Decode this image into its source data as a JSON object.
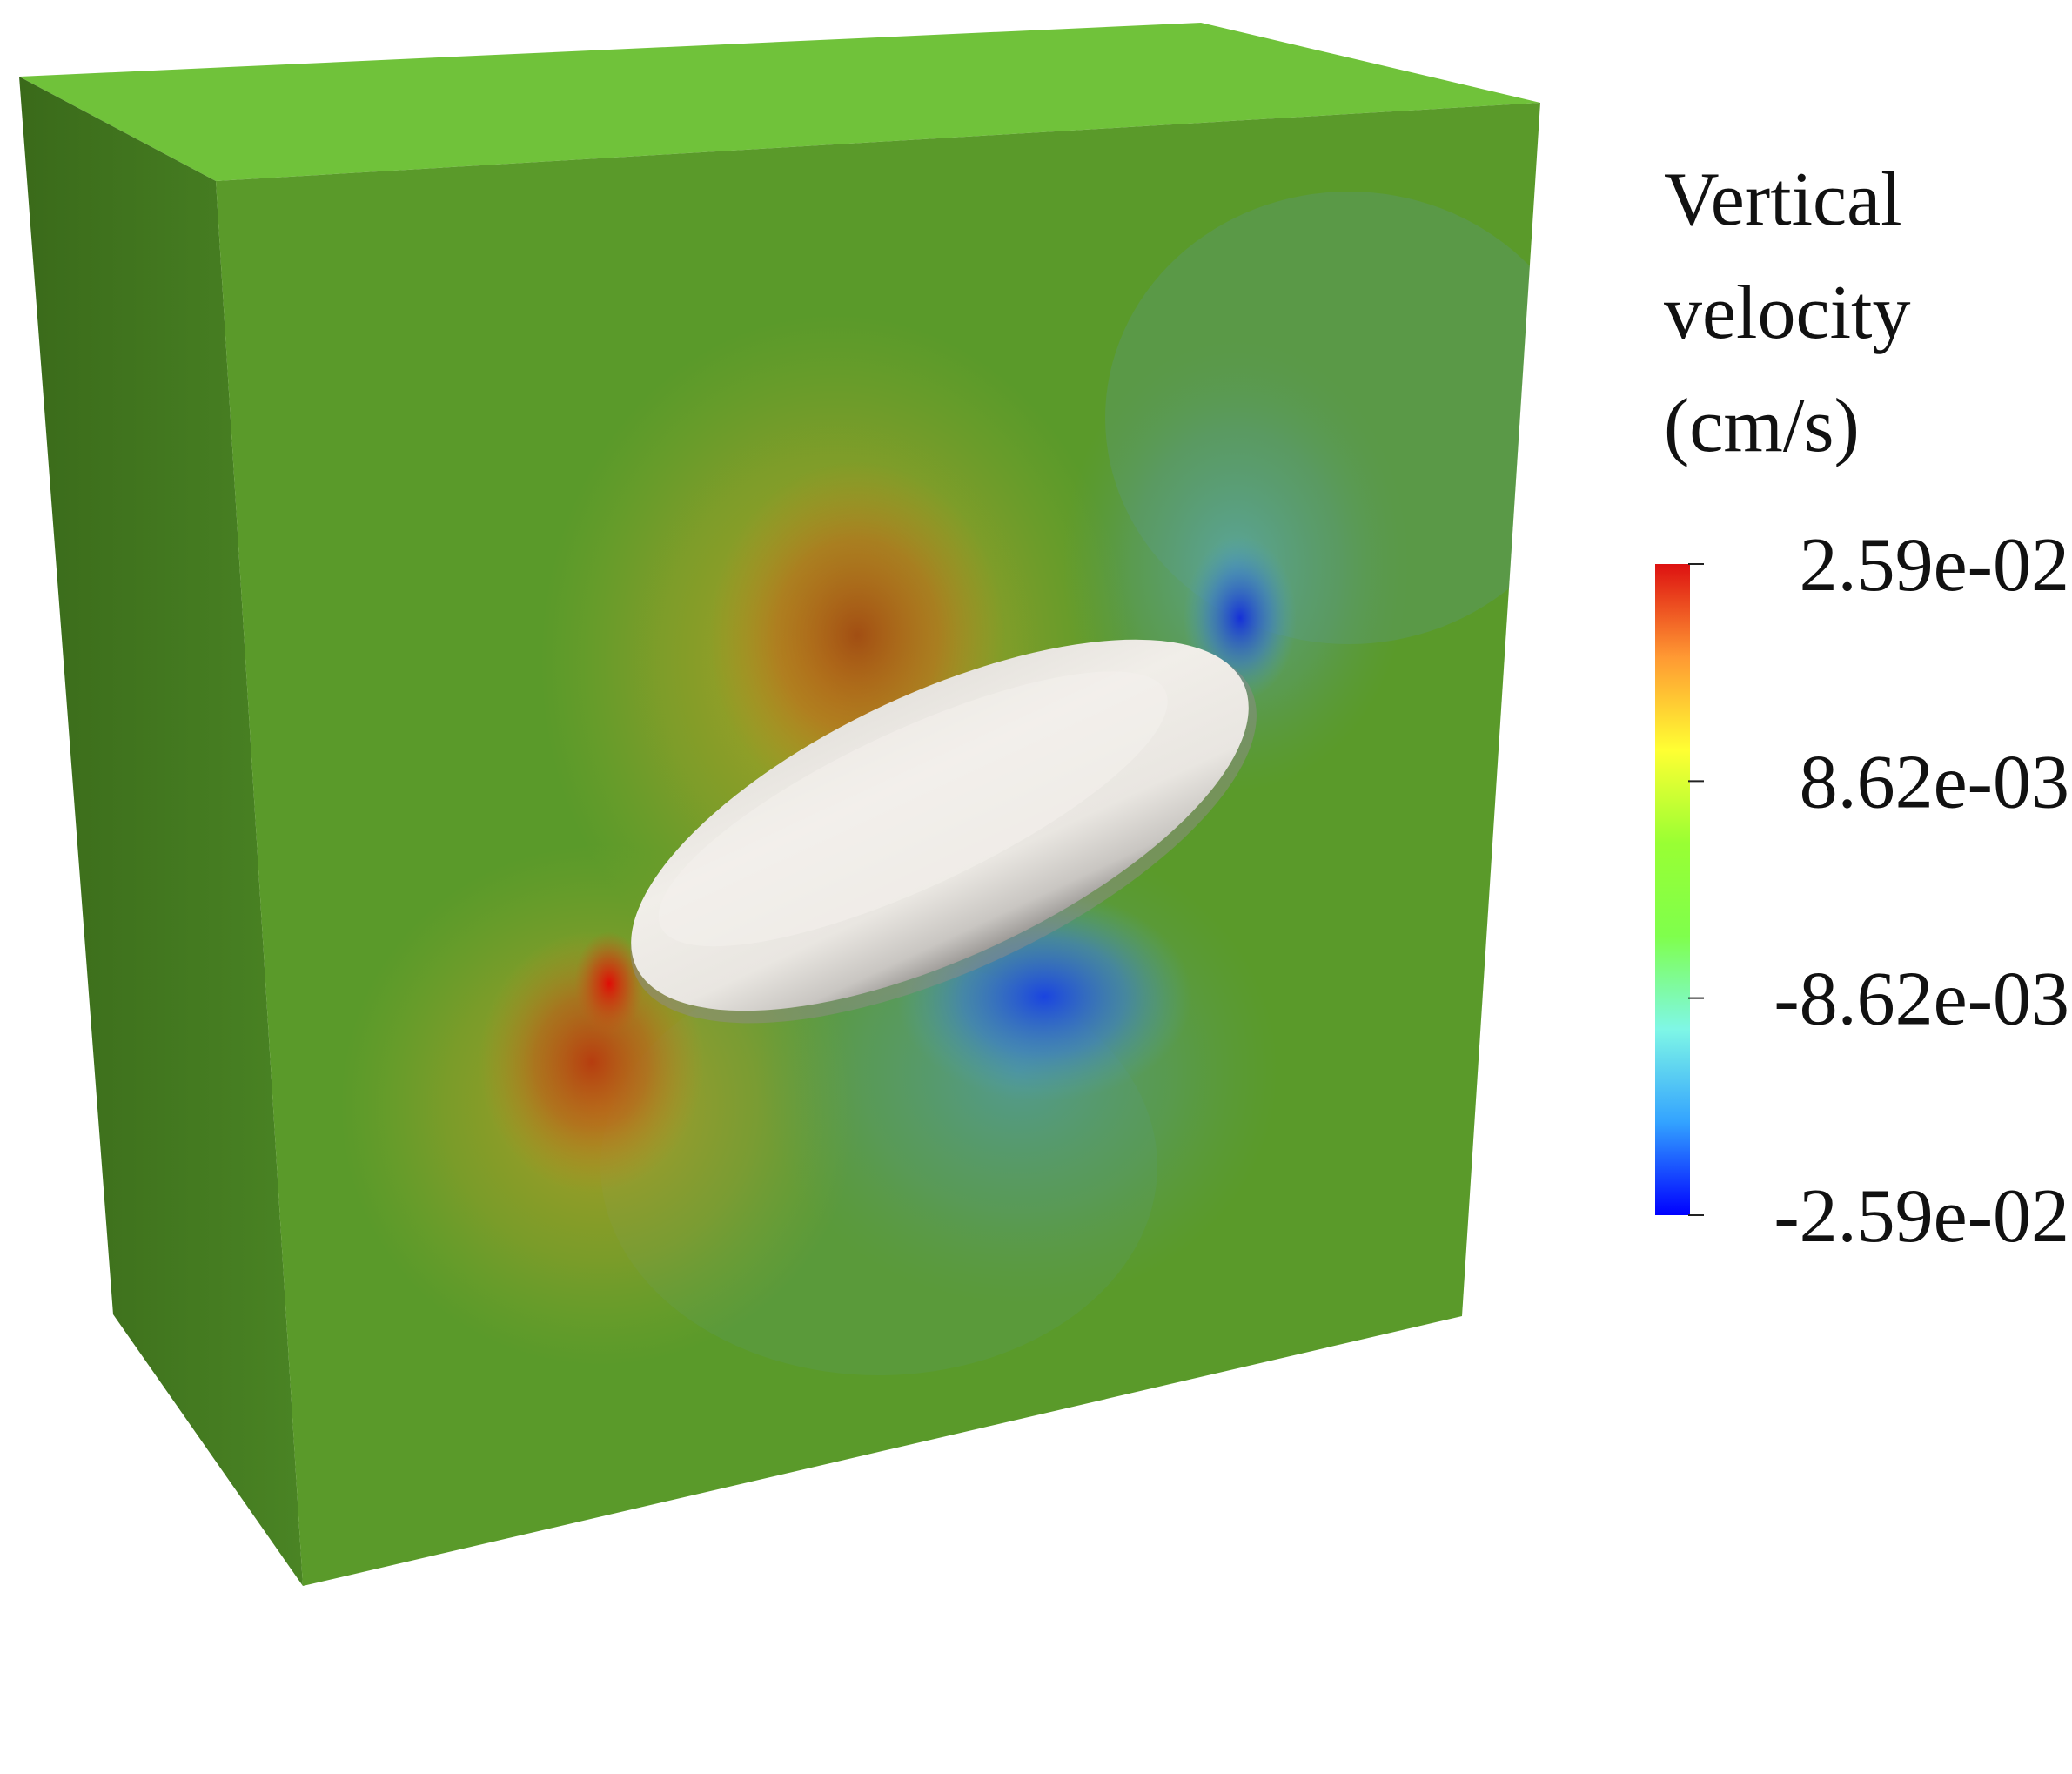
{
  "legend": {
    "title_lines": [
      "Vertical",
      "velocity",
      "(cm/s)"
    ],
    "ticks": [
      {
        "label": "2.59e-02",
        "value": 0.0259
      },
      {
        "label": "8.62e-03",
        "value": 0.00862
      },
      {
        "label": "-8.62e-03",
        "value": -0.00862
      },
      {
        "label": "-2.59e-02",
        "value": -0.0259
      }
    ],
    "colormap": [
      "#0000ff",
      "#33a3ff",
      "#7ff7e6",
      "#7fff4c",
      "#99ff33",
      "#ffff33",
      "#ff9933",
      "#dd1111"
    ]
  },
  "scene": {
    "box_colors": {
      "front": "#5a9a2a",
      "top": "#70c23a",
      "side": "#3c6e1c"
    },
    "body_color": "#ece9e4",
    "positive_color": "#c43a10",
    "negative_color": "#1a44e0"
  }
}
